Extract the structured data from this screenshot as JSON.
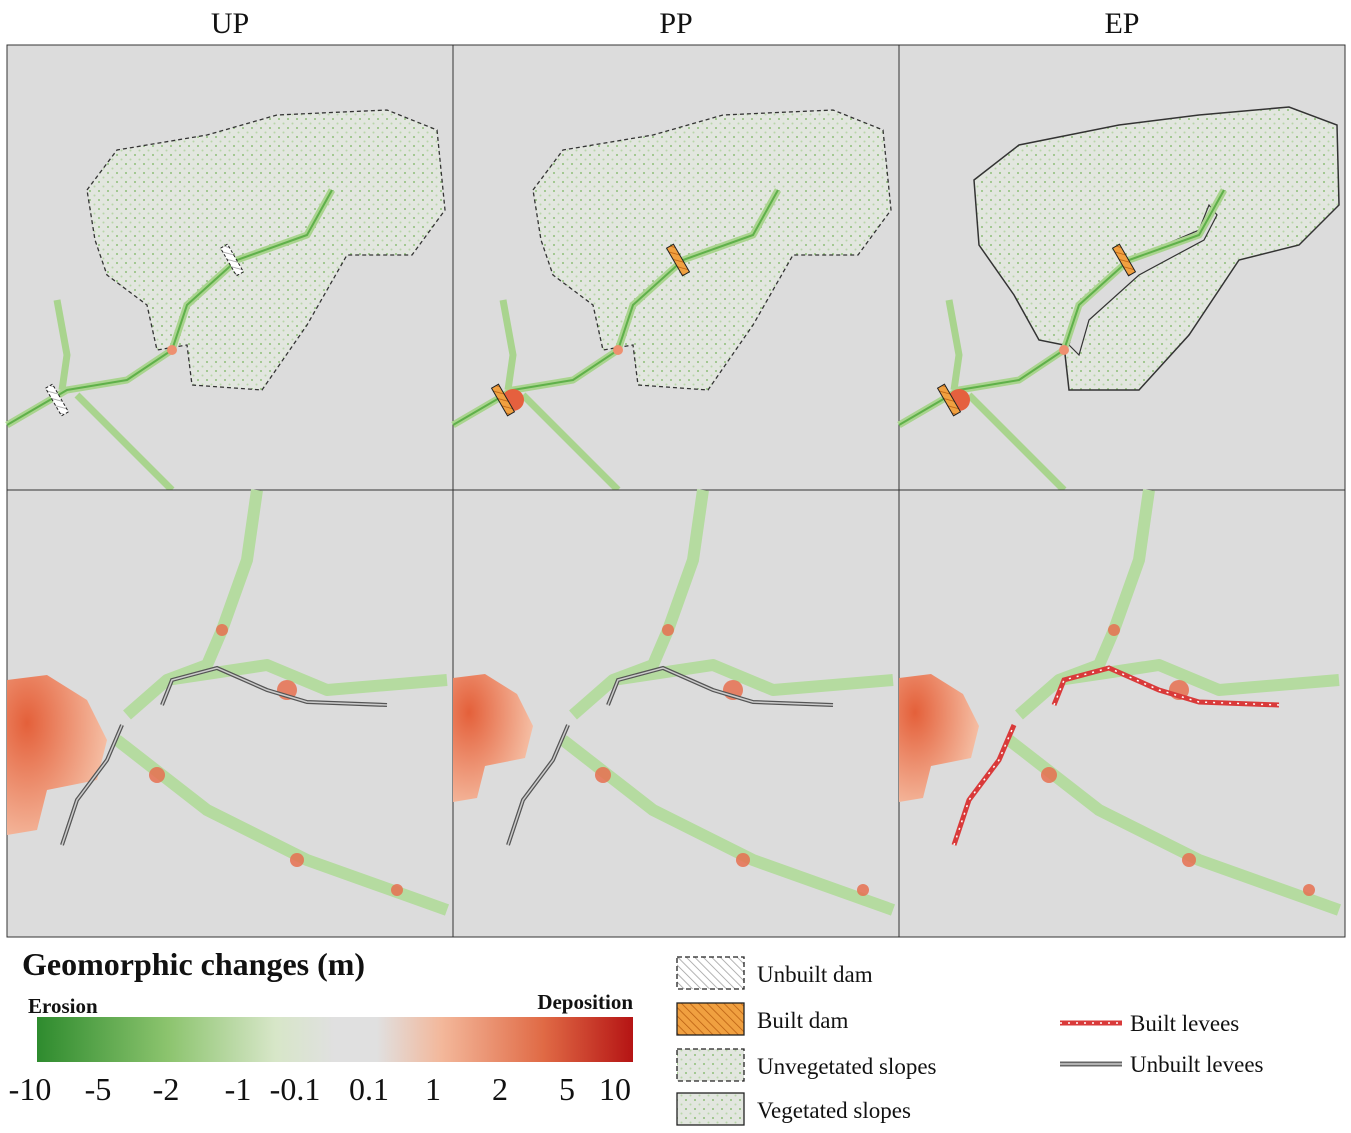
{
  "columns": [
    "UP",
    "PP",
    "EP"
  ],
  "legend": {
    "title": "Geomorphic changes (m)",
    "low_label": "Erosion",
    "high_label": "Deposition",
    "ticks": [
      -10,
      -5,
      -2,
      -1,
      -0.1,
      0.1,
      1,
      2,
      5,
      10
    ]
  },
  "symbols": [
    "Unbuilt dam",
    "Built dam",
    "Unvegetated slopes",
    "Vegetated slopes",
    "Built levees",
    "Unbuilt levees"
  ]
}
